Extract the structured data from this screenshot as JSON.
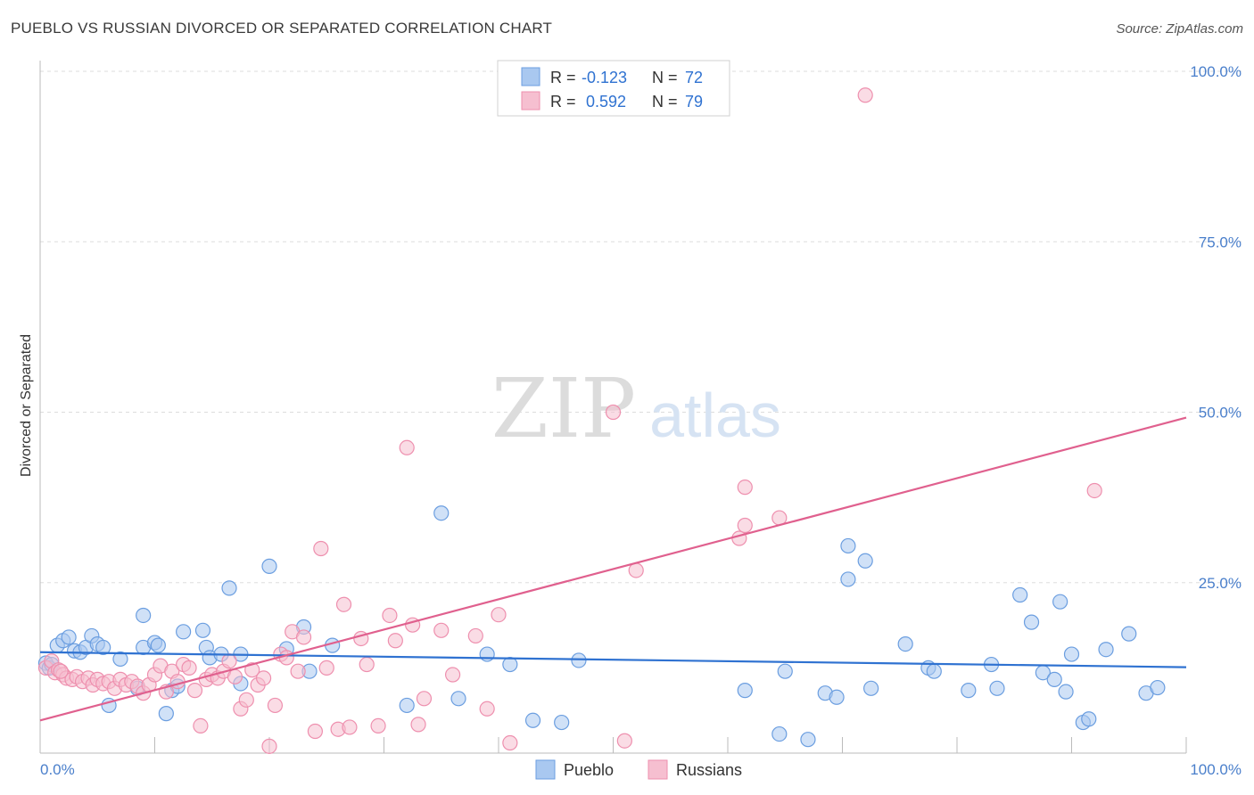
{
  "title": "PUEBLO VS RUSSIAN DIVORCED OR SEPARATED CORRELATION CHART",
  "source": "Source: ZipAtlas.com",
  "watermark": {
    "zip": "ZIP",
    "atlas": "atlas"
  },
  "colors": {
    "pueblo_fill": "#a9c8f0",
    "pueblo_stroke": "#6b9ee0",
    "pueblo_line": "#2f72d1",
    "russian_fill": "#f6bfd0",
    "russian_stroke": "#ee8fae",
    "russian_line": "#e0608e",
    "axis_text": "#4a7fcb",
    "grid": "#dddddd"
  },
  "legend": {
    "r_label": "R =",
    "n_label": "N =",
    "pueblo": {
      "r": "-0.123",
      "n": "72"
    },
    "russians": {
      "r": "0.592",
      "n": "79"
    }
  },
  "chart_data": {
    "type": "scatter",
    "title": "PUEBLO VS RUSSIAN DIVORCED OR SEPARATED CORRELATION CHART",
    "xlabel": "",
    "ylabel": "Divorced or Separated",
    "xlim": [
      0,
      100
    ],
    "ylim": [
      0,
      100
    ],
    "x_tick_labels": [
      "0.0%",
      "100.0%"
    ],
    "y_tick_labels": [
      "25.0%",
      "50.0%",
      "75.0%",
      "100.0%"
    ],
    "y_ticks": [
      25,
      50,
      75,
      100
    ],
    "grid": true,
    "legend_position": "top-center",
    "series": [
      {
        "name": "Pueblo",
        "trend": {
          "x": [
            0,
            100
          ],
          "y": [
            14.8,
            12.6
          ]
        },
        "points": [
          [
            0.5,
            13.2
          ],
          [
            0.8,
            12.5
          ],
          [
            1.5,
            15.8
          ],
          [
            2.0,
            16.5
          ],
          [
            2.5,
            17.0
          ],
          [
            3.0,
            15.0
          ],
          [
            3.5,
            14.8
          ],
          [
            4.0,
            15.5
          ],
          [
            4.5,
            17.2
          ],
          [
            5.0,
            16.0
          ],
          [
            5.5,
            15.5
          ],
          [
            6.0,
            7.0
          ],
          [
            7.0,
            13.8
          ],
          [
            8.5,
            9.5
          ],
          [
            9.0,
            20.2
          ],
          [
            9.0,
            15.5
          ],
          [
            10.0,
            16.2
          ],
          [
            10.3,
            15.8
          ],
          [
            11.0,
            5.8
          ],
          [
            11.5,
            9.2
          ],
          [
            12.0,
            9.8
          ],
          [
            12.5,
            17.8
          ],
          [
            14.2,
            18.0
          ],
          [
            14.5,
            15.5
          ],
          [
            14.8,
            14.0
          ],
          [
            15.8,
            14.5
          ],
          [
            16.5,
            24.2
          ],
          [
            17.5,
            10.2
          ],
          [
            17.5,
            14.5
          ],
          [
            20.0,
            27.4
          ],
          [
            21.5,
            15.3
          ],
          [
            23.0,
            18.5
          ],
          [
            23.5,
            12.0
          ],
          [
            25.5,
            15.8
          ],
          [
            32.0,
            7.0
          ],
          [
            35.0,
            35.2
          ],
          [
            36.5,
            8.0
          ],
          [
            39.0,
            14.5
          ],
          [
            41.0,
            13.0
          ],
          [
            43.0,
            4.8
          ],
          [
            45.5,
            4.5
          ],
          [
            47.0,
            13.6
          ],
          [
            61.5,
            9.2
          ],
          [
            64.5,
            2.8
          ],
          [
            65.0,
            12.0
          ],
          [
            67.0,
            2.0
          ],
          [
            68.5,
            8.8
          ],
          [
            69.5,
            8.2
          ],
          [
            70.5,
            25.5
          ],
          [
            70.5,
            30.4
          ],
          [
            72.0,
            28.2
          ],
          [
            72.5,
            9.5
          ],
          [
            75.5,
            16.0
          ],
          [
            77.5,
            12.5
          ],
          [
            78.0,
            12.0
          ],
          [
            81.0,
            9.2
          ],
          [
            83.0,
            13.0
          ],
          [
            83.5,
            9.5
          ],
          [
            85.5,
            23.2
          ],
          [
            86.5,
            19.2
          ],
          [
            87.5,
            11.8
          ],
          [
            88.5,
            10.8
          ],
          [
            89.0,
            22.2
          ],
          [
            89.5,
            9.0
          ],
          [
            90.0,
            14.5
          ],
          [
            91.0,
            4.5
          ],
          [
            91.5,
            5.0
          ],
          [
            93.0,
            15.2
          ],
          [
            95.0,
            17.5
          ],
          [
            96.5,
            8.8
          ],
          [
            97.5,
            9.6
          ],
          [
            1.0,
            13.0
          ]
        ]
      },
      {
        "name": "Russians",
        "trend": {
          "x": [
            0,
            100
          ],
          "y": [
            4.8,
            49.2
          ]
        },
        "points": [
          [
            0.5,
            12.5
          ],
          [
            1.0,
            13.5
          ],
          [
            1.3,
            11.8
          ],
          [
            1.6,
            12.2
          ],
          [
            2.0,
            11.5
          ],
          [
            2.3,
            11.0
          ],
          [
            2.8,
            10.8
          ],
          [
            3.2,
            11.2
          ],
          [
            3.7,
            10.5
          ],
          [
            4.2,
            11.0
          ],
          [
            4.6,
            10.0
          ],
          [
            5.0,
            10.8
          ],
          [
            5.5,
            10.2
          ],
          [
            6.0,
            10.5
          ],
          [
            6.5,
            9.5
          ],
          [
            7.0,
            10.8
          ],
          [
            7.5,
            10.0
          ],
          [
            8.0,
            10.5
          ],
          [
            8.5,
            9.8
          ],
          [
            9.0,
            8.8
          ],
          [
            9.5,
            10.0
          ],
          [
            10.0,
            11.5
          ],
          [
            10.5,
            12.8
          ],
          [
            11.0,
            9.0
          ],
          [
            11.5,
            12.0
          ],
          [
            12.0,
            10.5
          ],
          [
            12.5,
            13.0
          ],
          [
            13.0,
            12.5
          ],
          [
            13.5,
            9.2
          ],
          [
            14.0,
            4.0
          ],
          [
            14.5,
            10.8
          ],
          [
            15.0,
            11.5
          ],
          [
            15.5,
            11.0
          ],
          [
            16.0,
            12.0
          ],
          [
            16.5,
            13.5
          ],
          [
            17.0,
            11.2
          ],
          [
            17.5,
            6.5
          ],
          [
            18.0,
            7.8
          ],
          [
            18.5,
            12.2
          ],
          [
            19.0,
            10.0
          ],
          [
            19.5,
            11.0
          ],
          [
            20.0,
            1.0
          ],
          [
            20.5,
            7.0
          ],
          [
            21.0,
            14.5
          ],
          [
            21.5,
            14.0
          ],
          [
            22.0,
            17.8
          ],
          [
            22.5,
            12.0
          ],
          [
            23.0,
            17.0
          ],
          [
            24.0,
            3.2
          ],
          [
            24.5,
            30.0
          ],
          [
            25.0,
            12.5
          ],
          [
            26.0,
            3.5
          ],
          [
            26.5,
            21.8
          ],
          [
            27.0,
            3.8
          ],
          [
            28.0,
            16.8
          ],
          [
            28.5,
            13.0
          ],
          [
            29.5,
            4.0
          ],
          [
            30.5,
            20.2
          ],
          [
            31.0,
            16.5
          ],
          [
            32.0,
            44.8
          ],
          [
            32.5,
            18.8
          ],
          [
            33.0,
            4.2
          ],
          [
            33.5,
            8.0
          ],
          [
            35.0,
            18.0
          ],
          [
            36.0,
            11.5
          ],
          [
            38.0,
            17.2
          ],
          [
            39.0,
            6.5
          ],
          [
            40.0,
            20.3
          ],
          [
            41.0,
            1.5
          ],
          [
            50.0,
            50.0
          ],
          [
            51.0,
            1.8
          ],
          [
            52.0,
            26.8
          ],
          [
            61.0,
            31.5
          ],
          [
            61.5,
            33.4
          ],
          [
            61.5,
            39.0
          ],
          [
            64.5,
            34.5
          ],
          [
            72.0,
            96.5
          ],
          [
            92.0,
            38.5
          ],
          [
            1.8,
            12.0
          ]
        ]
      }
    ]
  },
  "bottom_legend": {
    "pueblo": "Pueblo",
    "russians": "Russians"
  }
}
